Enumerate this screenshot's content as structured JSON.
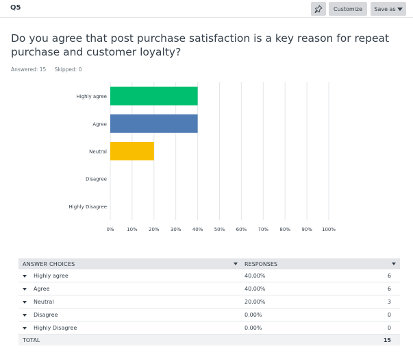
{
  "question": {
    "id": "Q5",
    "text": "Do you agree that post purchase satisfaction is a key reason for repeat purchase and customer loyalty?",
    "answered_label": "Answered: 15",
    "skipped_label": "Skipped: 0"
  },
  "toolbar": {
    "customize_label": "Customize",
    "save_as_label": "Save as",
    "pin_icon": "pin-icon"
  },
  "chart_data": {
    "type": "bar",
    "orientation": "horizontal",
    "categories": [
      "Highly agree",
      "Agree",
      "Neutral",
      "Disagree",
      "Highly Disagree"
    ],
    "values": [
      40,
      40,
      20,
      0,
      0
    ],
    "colors": [
      "#00bf6f",
      "#507cb6",
      "#f9be00",
      "#6bc8cd",
      "#ff8b4f"
    ],
    "xlim": [
      0,
      100
    ],
    "x_ticks": [
      "0%",
      "10%",
      "20%",
      "30%",
      "40%",
      "50%",
      "60%",
      "70%",
      "80%",
      "90%",
      "100%"
    ],
    "grid": true
  },
  "table": {
    "headers": {
      "choices": "ANSWER CHOICES",
      "responses": "RESPONSES"
    },
    "rows": [
      {
        "label": "Highly agree",
        "pct": "40.00%",
        "count": "6"
      },
      {
        "label": "Agree",
        "pct": "40.00%",
        "count": "6"
      },
      {
        "label": "Neutral",
        "pct": "20.00%",
        "count": "3"
      },
      {
        "label": "Disagree",
        "pct": "0.00%",
        "count": "0"
      },
      {
        "label": "Highly Disagree",
        "pct": "0.00%",
        "count": "0"
      }
    ],
    "total_label": "TOTAL",
    "total_count": "15"
  }
}
